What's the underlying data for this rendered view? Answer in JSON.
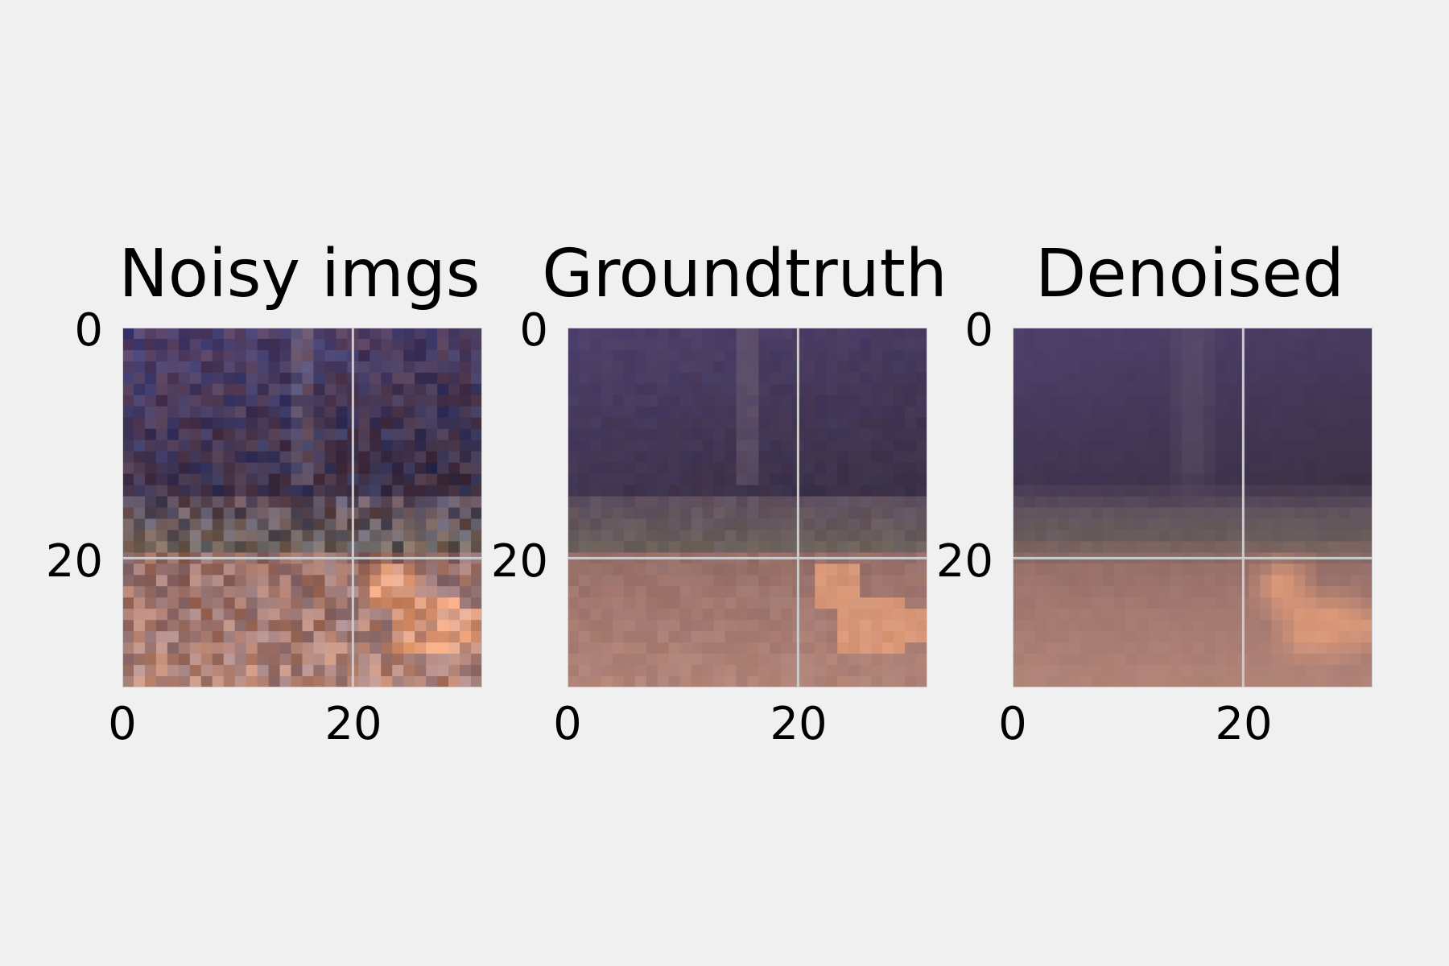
{
  "chart_data": [
    {
      "type": "heatmap",
      "title": "Noisy imgs",
      "image_shape": [
        32,
        32
      ],
      "xticks": [
        0,
        20
      ],
      "yticks": [
        0,
        20
      ],
      "xlim": [
        -0.5,
        31.5
      ],
      "ylim": [
        31.5,
        -0.5
      ],
      "grid": true,
      "content": "noisy"
    },
    {
      "type": "heatmap",
      "title": "Groundtruth",
      "image_shape": [
        32,
        32
      ],
      "xticks": [
        0,
        20
      ],
      "yticks": [
        0,
        20
      ],
      "xlim": [
        -0.5,
        31.5
      ],
      "ylim": [
        31.5,
        -0.5
      ],
      "grid": true,
      "content": "clean"
    },
    {
      "type": "heatmap",
      "title": "Denoised",
      "image_shape": [
        32,
        32
      ],
      "xticks": [
        0,
        20
      ],
      "yticks": [
        0,
        20
      ],
      "xlim": [
        -0.5,
        31.5
      ],
      "ylim": [
        31.5,
        -0.5
      ],
      "grid": true,
      "content": "smoothed"
    }
  ],
  "colors": {
    "background": "#f0f0f0",
    "grid": "#cbcbcb",
    "sky_top": "#4e3f6b",
    "sky_bottom": "#3b3045",
    "ground": "#a67a72",
    "subject": "#e8a07a"
  }
}
